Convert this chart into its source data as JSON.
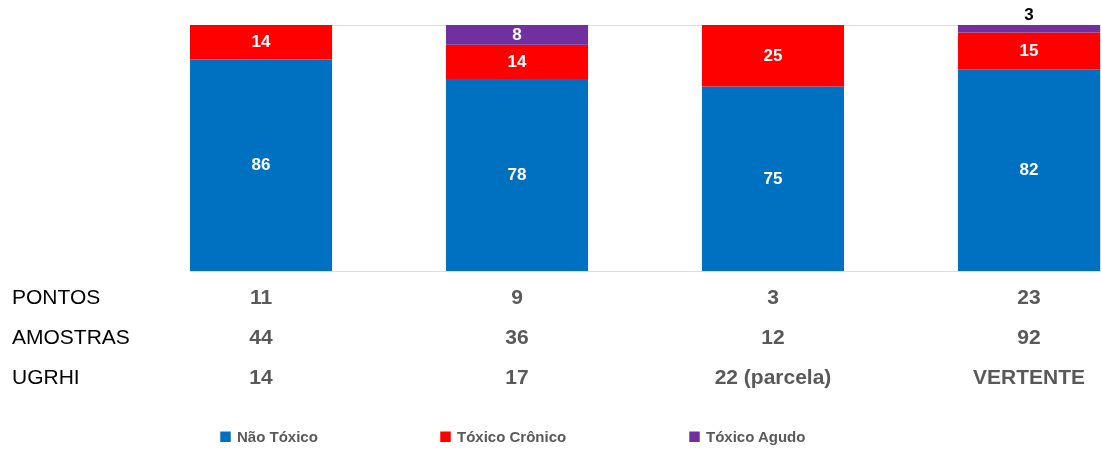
{
  "chart_data": {
    "type": "bar",
    "stacked": true,
    "data_labels": true,
    "legend": "bottom",
    "tick_labels": false,
    "categories": [
      "14",
      "17",
      "22 (parcela)",
      "VERTENTE"
    ],
    "series": [
      {
        "name": "Não Tóxico",
        "color": "#0070c0",
        "values": [
          86,
          78,
          75,
          82
        ]
      },
      {
        "name": "Tóxico Crônico",
        "color": "#ff0000",
        "values": [
          14,
          14,
          25,
          15
        ]
      },
      {
        "name": "Tóxico Agudo",
        "color": "#7030a0",
        "values": [
          null,
          8,
          null,
          3
        ]
      }
    ],
    "annotations": [
      "PONTOS",
      "11",
      "9",
      "3",
      "23",
      "AMOSTRAS",
      "44",
      "36",
      "12",
      "92",
      "UGRHI"
    ]
  }
}
